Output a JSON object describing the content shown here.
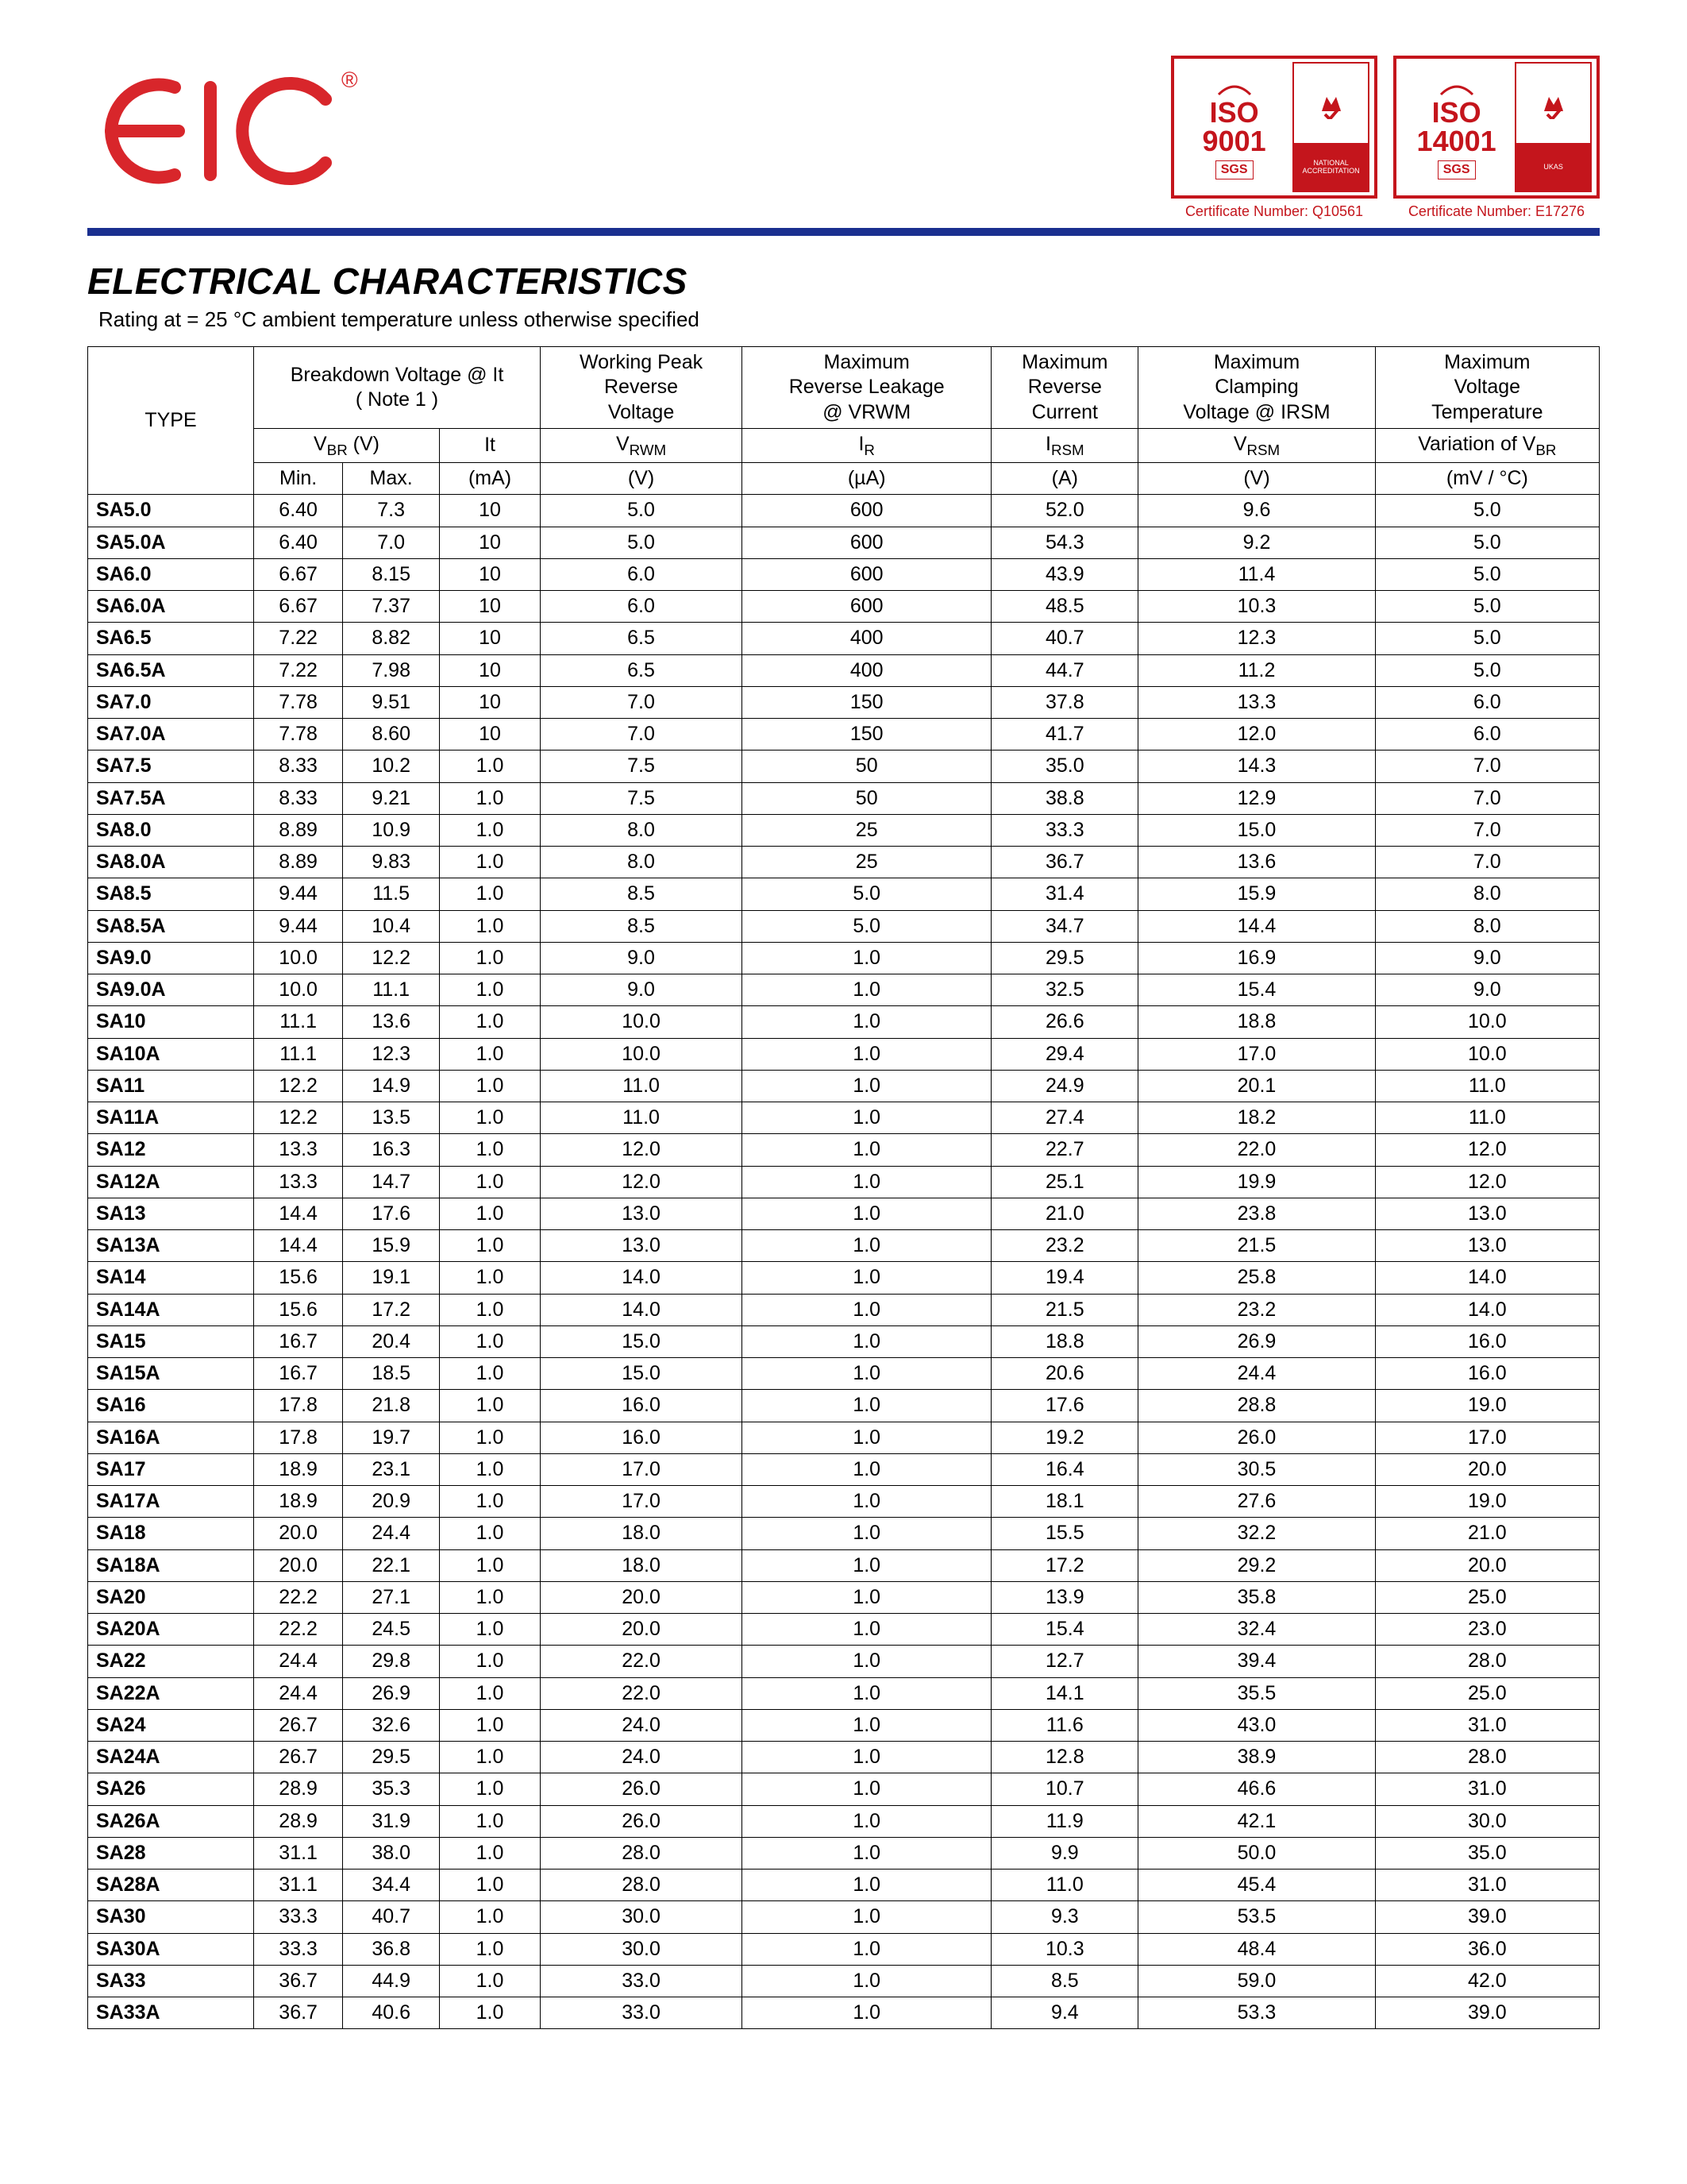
{
  "brand": {
    "logo_text": "EIC",
    "logo_color": "#d8262b",
    "reg_mark": "®"
  },
  "certs": [
    {
      "iso": "ISO",
      "num": "9001",
      "sgs": "SGS",
      "caption": "Certificate Number: Q10561",
      "color": "#c4151c",
      "right_label": "NATIONAL ACCREDITATION"
    },
    {
      "iso": "ISO",
      "num": "14001",
      "sgs": "SGS",
      "caption": "Certificate Number: E17276",
      "color": "#c4151c",
      "right_label": "UKAS"
    }
  ],
  "colors": {
    "hr": "#1a2f8f",
    "text": "#000000",
    "bg": "#ffffff"
  },
  "title": "ELECTRICAL CHARACTERISTICS",
  "subtitle_prefix": "Rating at  = 25 ",
  "subtitle_deg": "°C",
  "subtitle_suffix": " ambient temperature unless otherwise specified",
  "headers": {
    "type": "TYPE",
    "bd_title": "Breakdown Voltage @  It",
    "bd_note": "( Note 1 )",
    "vbr_label": "VBR (V)",
    "it_label": "It",
    "min": "Min.",
    "max": "Max.",
    "it_unit": "(mA)",
    "wprv_l1": "Working Peak",
    "wprv_l2": "Reverse",
    "wprv_l3": "Voltage",
    "vrwm_label": "VRWM",
    "vrwm_unit": "(V)",
    "mrl_l1": "Maximum",
    "mrl_l2": "Reverse Leakage",
    "mrl_l3": "@ VRWM",
    "ir_label": "IR",
    "ir_unit": "(µA)",
    "mrc_l1": "Maximum",
    "mrc_l2": "Reverse",
    "mrc_l3": "Current",
    "irsm_label": "IRSM",
    "irsm_unit": "(A)",
    "mcv_l1": "Maximum",
    "mcv_l2": "Clamping",
    "mcv_l3": "Voltage @ IRSM",
    "vrsm_label": "VRSM",
    "vrsm_unit": "(V)",
    "mvt_l1": "Maximum",
    "mvt_l2": "Voltage",
    "mvt_l3": "Temperature",
    "mvt_l4": "Variation of VBR",
    "mvt_unit": "(mV / °C)"
  },
  "rows": [
    {
      "type": "SA5.0",
      "min": "6.40",
      "max": "7.3",
      "it": "10",
      "vrwm": "5.0",
      "ir": "600",
      "irsm": "52.0",
      "vrsm": "9.6",
      "mvt": "5.0"
    },
    {
      "type": "SA5.0A",
      "min": "6.40",
      "max": "7.0",
      "it": "10",
      "vrwm": "5.0",
      "ir": "600",
      "irsm": "54.3",
      "vrsm": "9.2",
      "mvt": "5.0"
    },
    {
      "type": "SA6.0",
      "min": "6.67",
      "max": "8.15",
      "it": "10",
      "vrwm": "6.0",
      "ir": "600",
      "irsm": "43.9",
      "vrsm": "11.4",
      "mvt": "5.0"
    },
    {
      "type": "SA6.0A",
      "min": "6.67",
      "max": "7.37",
      "it": "10",
      "vrwm": "6.0",
      "ir": "600",
      "irsm": "48.5",
      "vrsm": "10.3",
      "mvt": "5.0"
    },
    {
      "type": "SA6.5",
      "min": "7.22",
      "max": "8.82",
      "it": "10",
      "vrwm": "6.5",
      "ir": "400",
      "irsm": "40.7",
      "vrsm": "12.3",
      "mvt": "5.0"
    },
    {
      "type": "SA6.5A",
      "min": "7.22",
      "max": "7.98",
      "it": "10",
      "vrwm": "6.5",
      "ir": "400",
      "irsm": "44.7",
      "vrsm": "11.2",
      "mvt": "5.0"
    },
    {
      "type": "SA7.0",
      "min": "7.78",
      "max": "9.51",
      "it": "10",
      "vrwm": "7.0",
      "ir": "150",
      "irsm": "37.8",
      "vrsm": "13.3",
      "mvt": "6.0"
    },
    {
      "type": "SA7.0A",
      "min": "7.78",
      "max": "8.60",
      "it": "10",
      "vrwm": "7.0",
      "ir": "150",
      "irsm": "41.7",
      "vrsm": "12.0",
      "mvt": "6.0"
    },
    {
      "type": "SA7.5",
      "min": "8.33",
      "max": "10.2",
      "it": "1.0",
      "vrwm": "7.5",
      "ir": "50",
      "irsm": "35.0",
      "vrsm": "14.3",
      "mvt": "7.0"
    },
    {
      "type": "SA7.5A",
      "min": "8.33",
      "max": "9.21",
      "it": "1.0",
      "vrwm": "7.5",
      "ir": "50",
      "irsm": "38.8",
      "vrsm": "12.9",
      "mvt": "7.0"
    },
    {
      "type": "SA8.0",
      "min": "8.89",
      "max": "10.9",
      "it": "1.0",
      "vrwm": "8.0",
      "ir": "25",
      "irsm": "33.3",
      "vrsm": "15.0",
      "mvt": "7.0"
    },
    {
      "type": "SA8.0A",
      "min": "8.89",
      "max": "9.83",
      "it": "1.0",
      "vrwm": "8.0",
      "ir": "25",
      "irsm": "36.7",
      "vrsm": "13.6",
      "mvt": "7.0"
    },
    {
      "type": "SA8.5",
      "min": "9.44",
      "max": "11.5",
      "it": "1.0",
      "vrwm": "8.5",
      "ir": "5.0",
      "irsm": "31.4",
      "vrsm": "15.9",
      "mvt": "8.0"
    },
    {
      "type": "SA8.5A",
      "min": "9.44",
      "max": "10.4",
      "it": "1.0",
      "vrwm": "8.5",
      "ir": "5.0",
      "irsm": "34.7",
      "vrsm": "14.4",
      "mvt": "8.0"
    },
    {
      "type": "SA9.0",
      "min": "10.0",
      "max": "12.2",
      "it": "1.0",
      "vrwm": "9.0",
      "ir": "1.0",
      "irsm": "29.5",
      "vrsm": "16.9",
      "mvt": "9.0"
    },
    {
      "type": "SA9.0A",
      "min": "10.0",
      "max": "11.1",
      "it": "1.0",
      "vrwm": "9.0",
      "ir": "1.0",
      "irsm": "32.5",
      "vrsm": "15.4",
      "mvt": "9.0"
    },
    {
      "type": "SA10",
      "min": "11.1",
      "max": "13.6",
      "it": "1.0",
      "vrwm": "10.0",
      "ir": "1.0",
      "irsm": "26.6",
      "vrsm": "18.8",
      "mvt": "10.0"
    },
    {
      "type": "SA10A",
      "min": "11.1",
      "max": "12.3",
      "it": "1.0",
      "vrwm": "10.0",
      "ir": "1.0",
      "irsm": "29.4",
      "vrsm": "17.0",
      "mvt": "10.0"
    },
    {
      "type": "SA11",
      "min": "12.2",
      "max": "14.9",
      "it": "1.0",
      "vrwm": "11.0",
      "ir": "1.0",
      "irsm": "24.9",
      "vrsm": "20.1",
      "mvt": "11.0"
    },
    {
      "type": "SA11A",
      "min": "12.2",
      "max": "13.5",
      "it": "1.0",
      "vrwm": "11.0",
      "ir": "1.0",
      "irsm": "27.4",
      "vrsm": "18.2",
      "mvt": "11.0"
    },
    {
      "type": "SA12",
      "min": "13.3",
      "max": "16.3",
      "it": "1.0",
      "vrwm": "12.0",
      "ir": "1.0",
      "irsm": "22.7",
      "vrsm": "22.0",
      "mvt": "12.0"
    },
    {
      "type": "SA12A",
      "min": "13.3",
      "max": "14.7",
      "it": "1.0",
      "vrwm": "12.0",
      "ir": "1.0",
      "irsm": "25.1",
      "vrsm": "19.9",
      "mvt": "12.0"
    },
    {
      "type": "SA13",
      "min": "14.4",
      "max": "17.6",
      "it": "1.0",
      "vrwm": "13.0",
      "ir": "1.0",
      "irsm": "21.0",
      "vrsm": "23.8",
      "mvt": "13.0"
    },
    {
      "type": "SA13A",
      "min": "14.4",
      "max": "15.9",
      "it": "1.0",
      "vrwm": "13.0",
      "ir": "1.0",
      "irsm": "23.2",
      "vrsm": "21.5",
      "mvt": "13.0"
    },
    {
      "type": "SA14",
      "min": "15.6",
      "max": "19.1",
      "it": "1.0",
      "vrwm": "14.0",
      "ir": "1.0",
      "irsm": "19.4",
      "vrsm": "25.8",
      "mvt": "14.0"
    },
    {
      "type": "SA14A",
      "min": "15.6",
      "max": "17.2",
      "it": "1.0",
      "vrwm": "14.0",
      "ir": "1.0",
      "irsm": "21.5",
      "vrsm": "23.2",
      "mvt": "14.0"
    },
    {
      "type": "SA15",
      "min": "16.7",
      "max": "20.4",
      "it": "1.0",
      "vrwm": "15.0",
      "ir": "1.0",
      "irsm": "18.8",
      "vrsm": "26.9",
      "mvt": "16.0"
    },
    {
      "type": "SA15A",
      "min": "16.7",
      "max": "18.5",
      "it": "1.0",
      "vrwm": "15.0",
      "ir": "1.0",
      "irsm": "20.6",
      "vrsm": "24.4",
      "mvt": "16.0"
    },
    {
      "type": "SA16",
      "min": "17.8",
      "max": "21.8",
      "it": "1.0",
      "vrwm": "16.0",
      "ir": "1.0",
      "irsm": "17.6",
      "vrsm": "28.8",
      "mvt": "19.0"
    },
    {
      "type": "SA16A",
      "min": "17.8",
      "max": "19.7",
      "it": "1.0",
      "vrwm": "16.0",
      "ir": "1.0",
      "irsm": "19.2",
      "vrsm": "26.0",
      "mvt": "17.0"
    },
    {
      "type": "SA17",
      "min": "18.9",
      "max": "23.1",
      "it": "1.0",
      "vrwm": "17.0",
      "ir": "1.0",
      "irsm": "16.4",
      "vrsm": "30.5",
      "mvt": "20.0"
    },
    {
      "type": "SA17A",
      "min": "18.9",
      "max": "20.9",
      "it": "1.0",
      "vrwm": "17.0",
      "ir": "1.0",
      "irsm": "18.1",
      "vrsm": "27.6",
      "mvt": "19.0"
    },
    {
      "type": "SA18",
      "min": "20.0",
      "max": "24.4",
      "it": "1.0",
      "vrwm": "18.0",
      "ir": "1.0",
      "irsm": "15.5",
      "vrsm": "32.2",
      "mvt": "21.0"
    },
    {
      "type": "SA18A",
      "min": "20.0",
      "max": "22.1",
      "it": "1.0",
      "vrwm": "18.0",
      "ir": "1.0",
      "irsm": "17.2",
      "vrsm": "29.2",
      "mvt": "20.0"
    },
    {
      "type": "SA20",
      "min": "22.2",
      "max": "27.1",
      "it": "1.0",
      "vrwm": "20.0",
      "ir": "1.0",
      "irsm": "13.9",
      "vrsm": "35.8",
      "mvt": "25.0"
    },
    {
      "type": "SA20A",
      "min": "22.2",
      "max": "24.5",
      "it": "1.0",
      "vrwm": "20.0",
      "ir": "1.0",
      "irsm": "15.4",
      "vrsm": "32.4",
      "mvt": "23.0"
    },
    {
      "type": "SA22",
      "min": "24.4",
      "max": "29.8",
      "it": "1.0",
      "vrwm": "22.0",
      "ir": "1.0",
      "irsm": "12.7",
      "vrsm": "39.4",
      "mvt": "28.0"
    },
    {
      "type": "SA22A",
      "min": "24.4",
      "max": "26.9",
      "it": "1.0",
      "vrwm": "22.0",
      "ir": "1.0",
      "irsm": "14.1",
      "vrsm": "35.5",
      "mvt": "25.0"
    },
    {
      "type": "SA24",
      "min": "26.7",
      "max": "32.6",
      "it": "1.0",
      "vrwm": "24.0",
      "ir": "1.0",
      "irsm": "11.6",
      "vrsm": "43.0",
      "mvt": "31.0"
    },
    {
      "type": "SA24A",
      "min": "26.7",
      "max": "29.5",
      "it": "1.0",
      "vrwm": "24.0",
      "ir": "1.0",
      "irsm": "12.8",
      "vrsm": "38.9",
      "mvt": "28.0"
    },
    {
      "type": "SA26",
      "min": "28.9",
      "max": "35.3",
      "it": "1.0",
      "vrwm": "26.0",
      "ir": "1.0",
      "irsm": "10.7",
      "vrsm": "46.6",
      "mvt": "31.0"
    },
    {
      "type": "SA26A",
      "min": "28.9",
      "max": "31.9",
      "it": "1.0",
      "vrwm": "26.0",
      "ir": "1.0",
      "irsm": "11.9",
      "vrsm": "42.1",
      "mvt": "30.0"
    },
    {
      "type": "SA28",
      "min": "31.1",
      "max": "38.0",
      "it": "1.0",
      "vrwm": "28.0",
      "ir": "1.0",
      "irsm": "9.9",
      "vrsm": "50.0",
      "mvt": "35.0"
    },
    {
      "type": "SA28A",
      "min": "31.1",
      "max": "34.4",
      "it": "1.0",
      "vrwm": "28.0",
      "ir": "1.0",
      "irsm": "11.0",
      "vrsm": "45.4",
      "mvt": "31.0"
    },
    {
      "type": "SA30",
      "min": "33.3",
      "max": "40.7",
      "it": "1.0",
      "vrwm": "30.0",
      "ir": "1.0",
      "irsm": "9.3",
      "vrsm": "53.5",
      "mvt": "39.0"
    },
    {
      "type": "SA30A",
      "min": "33.3",
      "max": "36.8",
      "it": "1.0",
      "vrwm": "30.0",
      "ir": "1.0",
      "irsm": "10.3",
      "vrsm": "48.4",
      "mvt": "36.0"
    },
    {
      "type": "SA33",
      "min": "36.7",
      "max": "44.9",
      "it": "1.0",
      "vrwm": "33.0",
      "ir": "1.0",
      "irsm": "8.5",
      "vrsm": "59.0",
      "mvt": "42.0"
    },
    {
      "type": "SA33A",
      "min": "36.7",
      "max": "40.6",
      "it": "1.0",
      "vrwm": "33.0",
      "ir": "1.0",
      "irsm": "9.4",
      "vrsm": "53.3",
      "mvt": "39.0"
    }
  ]
}
